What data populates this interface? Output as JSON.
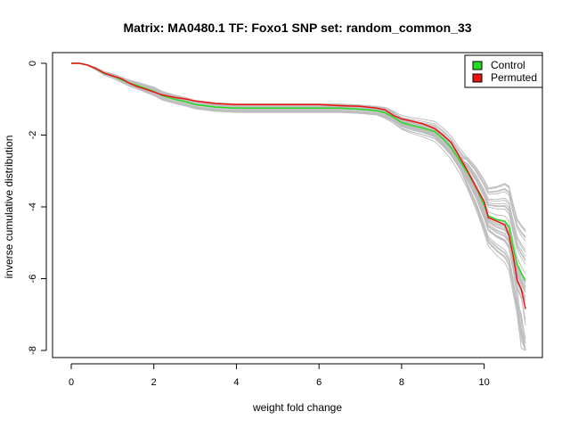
{
  "chart_data": {
    "type": "line",
    "title": "Matrix: MA0480.1 TF: Foxo1 SNP set: random_common_33",
    "xlabel": "weight fold change",
    "ylabel": "inverse cumulative distribution",
    "xlim": [
      0,
      11
    ],
    "ylim": [
      -8,
      0
    ],
    "x_ticks": [
      0,
      2,
      4,
      6,
      8,
      10
    ],
    "y_ticks": [
      0,
      -2,
      -4,
      -6,
      -8
    ],
    "x_tick_labels": [
      "0",
      "2",
      "4",
      "6",
      "8",
      "10"
    ],
    "y_tick_labels": [
      "0",
      "-2",
      "-4",
      "-6",
      "-8"
    ],
    "grid": false,
    "legend": {
      "placement": "top-right",
      "entries": [
        {
          "label": "Control",
          "color": "#22dd22"
        },
        {
          "label": "Permuted",
          "color": "#ee1111"
        }
      ]
    },
    "background_series": {
      "description_color": "#bebebe",
      "count": 40
    },
    "series": [
      {
        "name": "Control",
        "color": "#22dd22",
        "x": [
          0,
          0.2,
          0.4,
          0.6,
          0.8,
          1.0,
          1.2,
          1.4,
          1.6,
          1.8,
          2.0,
          2.2,
          2.5,
          2.8,
          3.0,
          3.5,
          4.0,
          5.0,
          6.0,
          6.5,
          7.0,
          7.4,
          7.6,
          7.8,
          8.0,
          8.2,
          8.5,
          8.8,
          9.0,
          9.2,
          9.4,
          9.6,
          9.8,
          10.0,
          10.1,
          10.3,
          10.5,
          10.6,
          10.7,
          10.8,
          10.9,
          11.0
        ],
        "y": [
          0,
          0,
          -0.05,
          -0.15,
          -0.28,
          -0.35,
          -0.45,
          -0.55,
          -0.62,
          -0.7,
          -0.78,
          -0.9,
          -1.0,
          -1.08,
          -1.15,
          -1.22,
          -1.25,
          -1.25,
          -1.25,
          -1.25,
          -1.28,
          -1.32,
          -1.38,
          -1.5,
          -1.65,
          -1.72,
          -1.8,
          -1.9,
          -2.1,
          -2.35,
          -2.7,
          -3.05,
          -3.45,
          -3.95,
          -4.25,
          -4.35,
          -4.4,
          -4.55,
          -5.1,
          -5.6,
          -5.85,
          -6.05
        ]
      },
      {
        "name": "Permuted",
        "color": "#ee1111",
        "x": [
          0,
          0.2,
          0.4,
          0.6,
          0.8,
          1.0,
          1.2,
          1.4,
          1.6,
          1.8,
          2.0,
          2.2,
          2.5,
          2.8,
          3.0,
          3.5,
          4.0,
          5.0,
          6.0,
          6.5,
          7.0,
          7.4,
          7.6,
          7.8,
          8.0,
          8.2,
          8.5,
          8.8,
          9.0,
          9.2,
          9.4,
          9.6,
          9.8,
          10.0,
          10.1,
          10.3,
          10.5,
          10.6,
          10.7,
          10.8,
          10.9,
          11.0
        ],
        "y": [
          0,
          0,
          -0.05,
          -0.15,
          -0.27,
          -0.35,
          -0.42,
          -0.55,
          -0.65,
          -0.72,
          -0.8,
          -0.88,
          -0.95,
          -1.0,
          -1.05,
          -1.12,
          -1.15,
          -1.15,
          -1.15,
          -1.18,
          -1.2,
          -1.25,
          -1.3,
          -1.45,
          -1.55,
          -1.6,
          -1.68,
          -1.82,
          -2.0,
          -2.2,
          -2.6,
          -3.0,
          -3.45,
          -3.85,
          -4.3,
          -4.4,
          -4.5,
          -4.8,
          -5.35,
          -6.05,
          -6.3,
          -6.85
        ]
      }
    ]
  }
}
